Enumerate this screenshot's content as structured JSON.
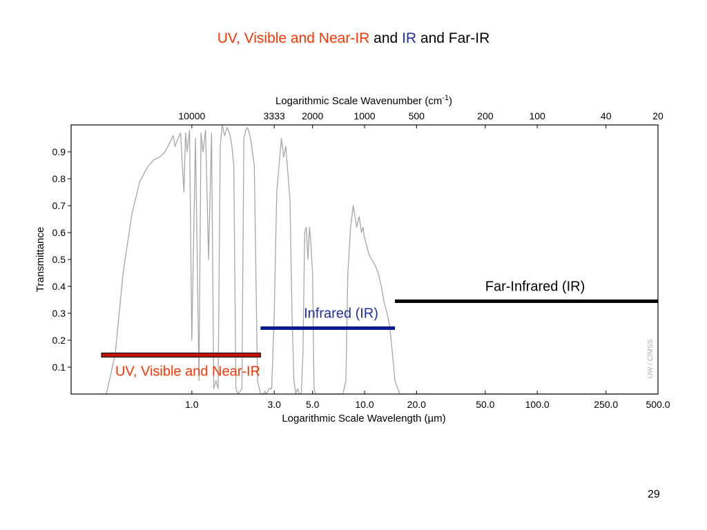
{
  "slide": {
    "title_parts": [
      "UV, Visible and Near-IR",
      "and",
      "IR",
      "and Far-IR"
    ],
    "page_number": "29"
  },
  "colors": {
    "title_red": "#ff3300",
    "title_blue": "#1f2ea0",
    "uv_band": "#c0150f",
    "ir_band": "#0b1a8c",
    "far_ir_band": "#000000",
    "spectrum": "#a6a6a6"
  },
  "chart_data": {
    "type": "line",
    "x_scale": "log",
    "xlabel": "Logarithmic Scale Wavelength (µm)",
    "ylabel": "Transmittance",
    "top_axis_label_main": "Logarithmic Scale Wavenumber (cm",
    "top_axis_label_sup": "-1",
    "top_axis_label_end": ")",
    "xlim": [
      0.2,
      500
    ],
    "ylim": [
      0,
      1.0
    ],
    "y_ticks": [
      0.1,
      0.2,
      0.3,
      0.4,
      0.5,
      0.6,
      0.7,
      0.8,
      0.9
    ],
    "y_tick_labels": [
      "0.1",
      "0.2",
      "0.3",
      "0.4",
      "0.5",
      "0.6",
      "0.7",
      "0.8",
      "0.9"
    ],
    "x_ticks": [
      1.0,
      3.0,
      5.0,
      10.0,
      20.0,
      50.0,
      100.0,
      250.0,
      500.0
    ],
    "x_tick_labels": [
      "1.0",
      "3.0",
      "5.0",
      "10.0",
      "20.0",
      "50.0",
      "100.0",
      "250.0",
      "500.0"
    ],
    "top_ticks": [
      10000,
      3333,
      2000,
      1000,
      500,
      200,
      100,
      40,
      20
    ],
    "top_tick_labels": [
      "10000",
      "3333",
      "2000",
      "1000",
      "500",
      "200",
      "100",
      "40",
      "20"
    ],
    "grid": false,
    "watermark": "UW / CIMSS",
    "series": [
      {
        "values_x": [
          0.3,
          0.32,
          0.36,
          0.4,
          0.45,
          0.5,
          0.55,
          0.6,
          0.65,
          0.7,
          0.74,
          0.78,
          0.8,
          0.82,
          0.86,
          0.9,
          0.92,
          0.94,
          0.97,
          1.0,
          1.05,
          1.1,
          1.13,
          1.16,
          1.2,
          1.25,
          1.3,
          1.34,
          1.38,
          1.42,
          1.46,
          1.5,
          1.55,
          1.6,
          1.65,
          1.7,
          1.75,
          1.8,
          1.85,
          1.9,
          1.95,
          2.0,
          2.05,
          2.1,
          2.15,
          2.2,
          2.3,
          2.4,
          2.5,
          2.6,
          2.65,
          2.7,
          2.8,
          2.9,
          3.0,
          3.1,
          3.2,
          3.3,
          3.4,
          3.5,
          3.6,
          3.7,
          3.8,
          3.9,
          4.0,
          4.1,
          4.2,
          4.3,
          4.4,
          4.5,
          4.6,
          4.7,
          4.8,
          4.9,
          5.0,
          5.1,
          5.2,
          5.4,
          5.7,
          6.0,
          6.5,
          7.0,
          7.5,
          7.8,
          8.0,
          8.3,
          8.6,
          9.0,
          9.3,
          9.6,
          9.8,
          10.0,
          10.3,
          10.6,
          11.0,
          11.5,
          12.0,
          12.5,
          13.0,
          13.5,
          14.0,
          14.5,
          15.0,
          16.0,
          18.0,
          25.0,
          100.0,
          500.0
        ],
        "values_y": [
          0.0,
          0.0,
          0.15,
          0.45,
          0.67,
          0.79,
          0.84,
          0.87,
          0.88,
          0.9,
          0.93,
          0.96,
          0.92,
          0.94,
          0.97,
          0.75,
          0.97,
          0.9,
          0.98,
          0.2,
          0.95,
          0.05,
          0.97,
          0.9,
          0.98,
          0.5,
          0.97,
          0.02,
          0.05,
          0.02,
          0.92,
          1.0,
          0.96,
          0.99,
          0.97,
          0.93,
          0.85,
          0.02,
          0.0,
          0.01,
          0.02,
          0.95,
          0.98,
          0.99,
          0.97,
          0.94,
          0.85,
          0.05,
          0.0,
          0.0,
          0.01,
          0.0,
          0.02,
          0.02,
          0.3,
          0.75,
          0.85,
          0.95,
          0.88,
          0.92,
          0.82,
          0.72,
          0.3,
          0.05,
          0.0,
          0.02,
          0.0,
          0.0,
          0.15,
          0.6,
          0.62,
          0.5,
          0.62,
          0.55,
          0.45,
          0.02,
          0.0,
          0.0,
          0.0,
          0.0,
          0.0,
          0.0,
          0.0,
          0.05,
          0.45,
          0.62,
          0.7,
          0.62,
          0.66,
          0.6,
          0.62,
          0.58,
          0.55,
          0.52,
          0.5,
          0.48,
          0.45,
          0.4,
          0.34,
          0.3,
          0.25,
          0.15,
          0.05,
          0.0,
          0.0,
          0.0,
          0.0,
          0.0
        ]
      }
    ],
    "bands": [
      {
        "label": "UV, Visible and Near-IR",
        "x_start": 0.3,
        "x_end": 2.5,
        "y": 0.145,
        "color": "#c0150f",
        "label_position": "below"
      },
      {
        "label": "Infrared (IR)",
        "x_start": 2.5,
        "x_end": 15.0,
        "y": 0.245,
        "color": "#0b1a8c",
        "label_position": "above"
      },
      {
        "label": "Far-Infrared (IR)",
        "x_start": 15.0,
        "x_end": 500,
        "y": 0.345,
        "color": "#000000",
        "label_position": "above"
      }
    ]
  }
}
